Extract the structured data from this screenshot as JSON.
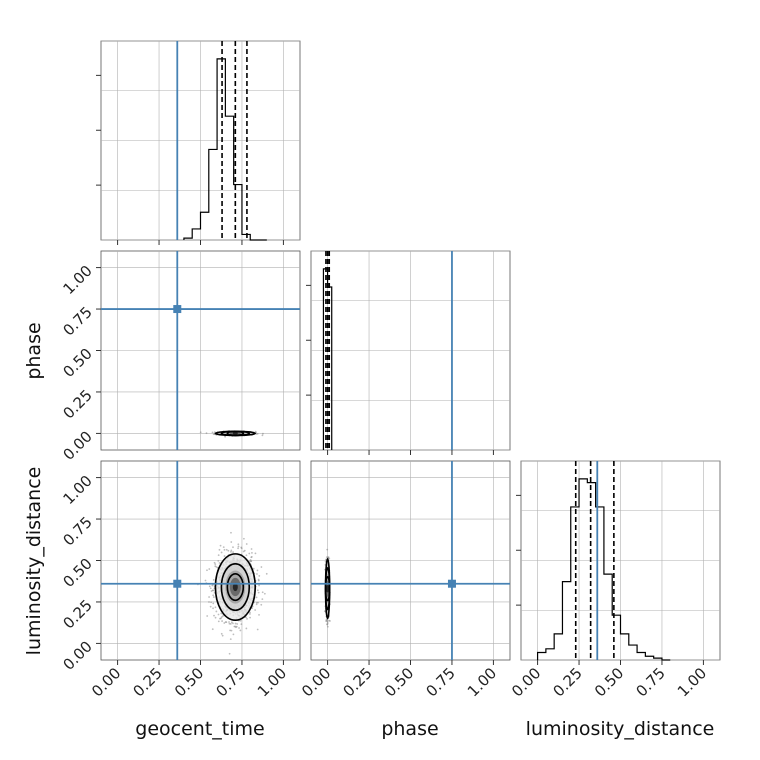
{
  "chart_data": {
    "type": "corner",
    "parameters": [
      "geocent_time",
      "phase",
      "luminosity_distance"
    ],
    "axis_range": [
      -0.1,
      1.1
    ],
    "ticks": [
      0.0,
      0.25,
      0.5,
      0.75,
      1.0
    ],
    "tick_labels": [
      "0.00",
      "0.25",
      "0.50",
      "0.75",
      "1.00"
    ],
    "grid": true,
    "truths": {
      "geocent_time": 0.36,
      "phase": 0.75,
      "luminosity_distance": 0.36
    },
    "colors": {
      "truth": "#4682b4",
      "hist": "#000000",
      "grid": "#b0b0b0",
      "points": "#888888"
    },
    "marginals": {
      "geocent_time": {
        "bin_edges": [
          0.4,
          0.45,
          0.5,
          0.55,
          0.6,
          0.65,
          0.7,
          0.75,
          0.8,
          0.85,
          0.9
        ],
        "counts": [
          0.01,
          0.06,
          0.15,
          0.49,
          0.98,
          0.67,
          0.3,
          0.03,
          0.0,
          0.0
        ],
        "quantiles": [
          0.63,
          0.71,
          0.78
        ]
      },
      "phase": {
        "bin_edges": [
          -0.025,
          0.0,
          0.025
        ],
        "counts": [
          1.0,
          0.9
        ],
        "quantiles": [
          -0.01,
          0.0,
          0.01
        ]
      },
      "luminosity_distance": {
        "bin_edges": [
          0.0,
          0.05,
          0.1,
          0.15,
          0.2,
          0.25,
          0.3,
          0.35,
          0.4,
          0.45,
          0.5,
          0.55,
          0.6,
          0.65,
          0.7,
          0.75,
          0.8
        ],
        "counts": [
          0.04,
          0.06,
          0.14,
          0.42,
          0.82,
          0.97,
          0.95,
          0.82,
          0.46,
          0.24,
          0.14,
          0.08,
          0.04,
          0.02,
          0.01,
          0.0
        ],
        "quantiles": [
          0.23,
          0.32,
          0.46
        ]
      }
    },
    "pairs": [
      {
        "x": "geocent_time",
        "y": "phase",
        "center": [
          0.71,
          0.0
        ],
        "spread": [
          0.06,
          0.006
        ],
        "n_points": 280
      },
      {
        "x": "geocent_time",
        "y": "luminosity_distance",
        "center": [
          0.71,
          0.34
        ],
        "spread": [
          0.06,
          0.1
        ],
        "n_points": 1100
      },
      {
        "x": "phase",
        "y": "luminosity_distance",
        "center": [
          0.0,
          0.33
        ],
        "spread": [
          0.005,
          0.09
        ],
        "n_points": 420
      }
    ]
  }
}
